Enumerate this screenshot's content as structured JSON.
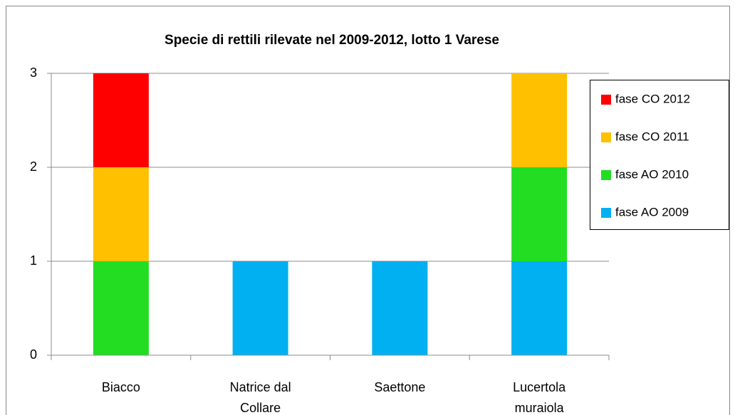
{
  "chart_data": {
    "type": "stacked_bar",
    "title": "Specie di rettili rilevate nel 2009-2012, lotto 1 Varese",
    "categories": [
      "Biacco",
      "Natrice dal Collare",
      "Saettone",
      "Lucertola muraiola"
    ],
    "series": [
      {
        "name": "fase AO 2009",
        "color": "#00b0f0",
        "values": [
          0,
          1,
          1,
          1
        ]
      },
      {
        "name": "fase AO 2010",
        "color": "#22dd22",
        "values": [
          1,
          0,
          0,
          1
        ]
      },
      {
        "name": "fase CO 2011",
        "color": "#ffc000",
        "values": [
          1,
          0,
          0,
          1
        ]
      },
      {
        "name": "fase CO 2012",
        "color": "#ff0000",
        "values": [
          1,
          0,
          0,
          0
        ]
      }
    ],
    "ylim": [
      0,
      3
    ],
    "yticks": [
      0,
      1,
      2,
      3
    ],
    "grid": true,
    "legend": "right"
  }
}
